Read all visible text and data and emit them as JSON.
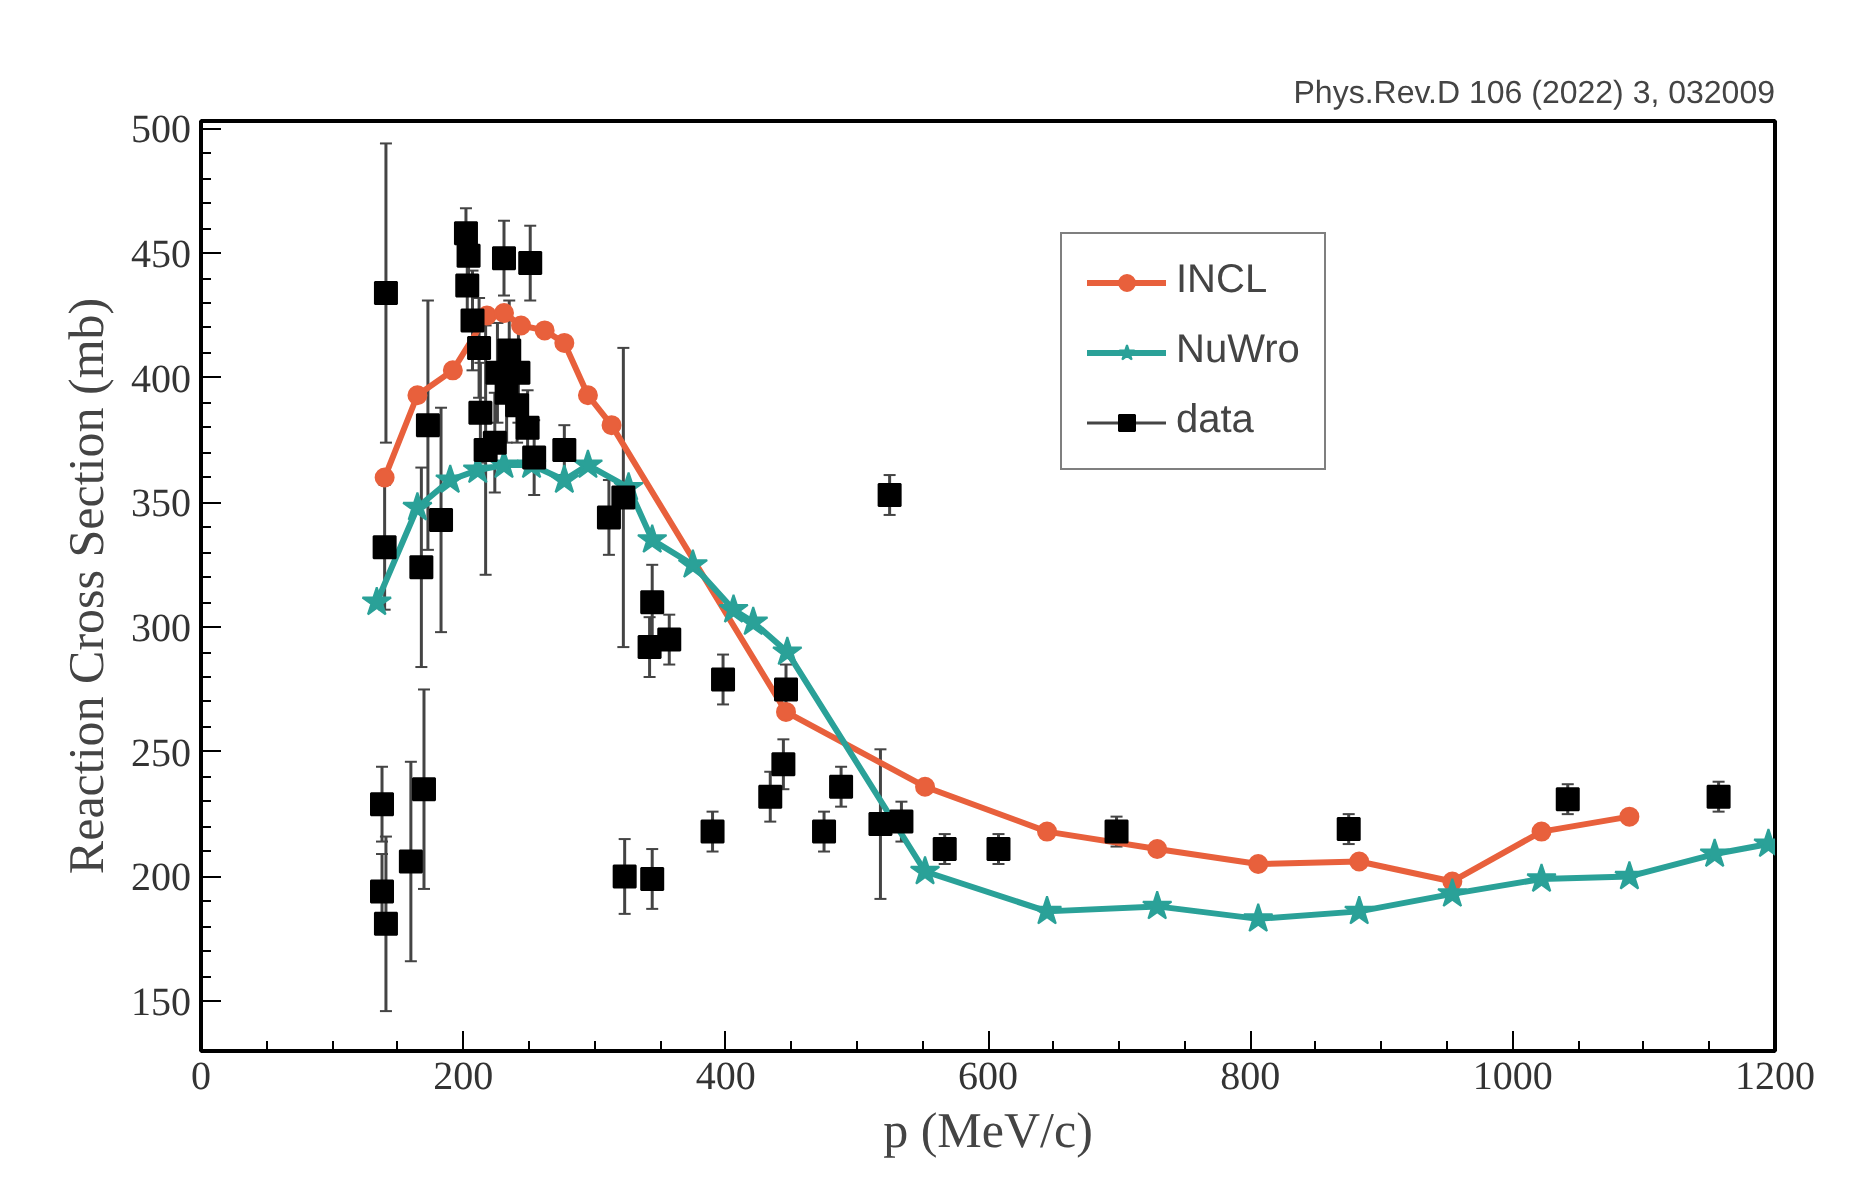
{
  "chart_data": {
    "type": "line",
    "xlabel": "p (MeV/c)",
    "ylabel": "Reaction Cross Section (mb)",
    "annotations": [
      "Phys.Rev.D 106 (2022) 3, 032009"
    ],
    "xlim": [
      0,
      1200
    ],
    "xticks": [
      0,
      200,
      400,
      600,
      800,
      1000,
      1200
    ],
    "ylim": [
      130,
      503
    ],
    "yticks": [
      150,
      200,
      250,
      300,
      350,
      400,
      450,
      500
    ],
    "grid": false,
    "legend": "top right",
    "series": [
      {
        "name": "INCL",
        "color": "#e8603c",
        "marker": "circle",
        "x": [
          140,
          165,
          192,
          218,
          231,
          244,
          262,
          277,
          295,
          313,
          446,
          552,
          645,
          729,
          806,
          883,
          954,
          1022,
          1089
        ],
        "values": [
          360,
          393,
          403,
          425,
          426,
          421,
          419,
          414,
          393,
          381,
          266,
          236,
          218,
          211,
          205,
          206,
          198,
          218,
          224
        ]
      },
      {
        "name": "NuWro",
        "color": "#2aa198",
        "marker": "star",
        "x": [
          134,
          165,
          190,
          211,
          231,
          252,
          277,
          295,
          326,
          344,
          375,
          406,
          421,
          447,
          552,
          645,
          729,
          806,
          883,
          954,
          1022,
          1089,
          1154,
          1195
        ],
        "values": [
          310,
          348,
          359,
          363,
          365,
          365,
          359,
          365,
          356,
          335,
          325,
          307,
          302,
          290,
          202,
          186,
          188,
          183,
          186,
          193,
          199,
          200,
          209,
          213
        ]
      },
      {
        "name": "data",
        "type": "scatter",
        "color": "#000000",
        "marker": "square",
        "x": [
          141,
          140,
          138,
          138,
          141,
          160,
          170,
          168,
          173,
          183,
          202,
          204,
          203,
          207,
          212,
          213,
          217,
          224,
          226,
          233,
          241,
          249,
          254,
          235,
          242,
          231,
          251,
          277,
          311,
          322,
          323,
          344,
          342,
          357,
          398,
          446,
          444,
          434,
          488,
          475,
          390,
          344,
          518,
          534,
          567,
          608,
          525,
          698,
          875,
          1042,
          1157
        ],
        "values": [
          434,
          332,
          229,
          194,
          181,
          206,
          235,
          324,
          381,
          343,
          458,
          449,
          437,
          423,
          412,
          386,
          371,
          374,
          402,
          394,
          389,
          380,
          368,
          411,
          402,
          448,
          446,
          371,
          344,
          352,
          200,
          310,
          292,
          295,
          279,
          275,
          245,
          232,
          236,
          218,
          218,
          199,
          221,
          222,
          211,
          211,
          353,
          218,
          219,
          231,
          232
        ],
        "errors": [
          60,
          25,
          15,
          15,
          35,
          40,
          40,
          40,
          50,
          45,
          10,
          10,
          10,
          20,
          20,
          20,
          50,
          20,
          20,
          20,
          15,
          15,
          15,
          20,
          20,
          15,
          15,
          10,
          15,
          60,
          15,
          15,
          12,
          10,
          10,
          10,
          10,
          10,
          8,
          8,
          8,
          12,
          30,
          8,
          6,
          6,
          8,
          6,
          6,
          6,
          6
        ]
      }
    ]
  }
}
